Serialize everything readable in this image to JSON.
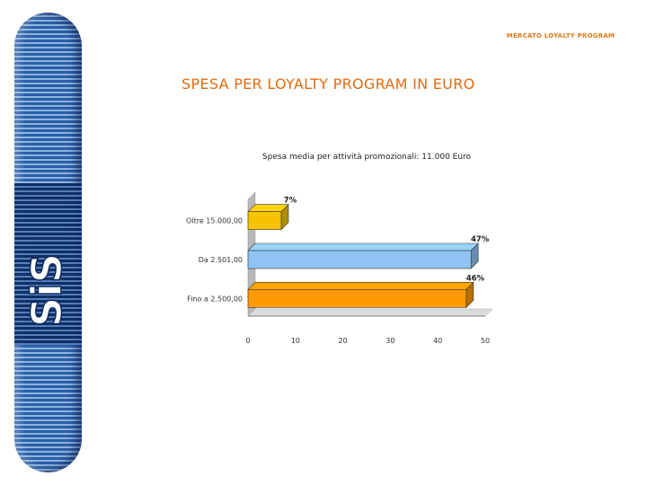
{
  "header": {
    "label": "MERCATO LOYALTY PROGRAM"
  },
  "page": {
    "title": "SPESA PER LOYALTY PROGRAM IN EURO"
  },
  "logo": {
    "text": "SiS",
    "icon": "sis-logo-vertical"
  },
  "colors": {
    "title": "#e06a10",
    "sidebar": "#2a5fa8"
  },
  "chart_data": {
    "type": "bar",
    "orientation": "horizontal",
    "title": "Spesa media per attività promozionali: 11.000 Euro",
    "categories": [
      "Oltre 15.000,00",
      "Da 2.501,00",
      "Fino a 2.500,00"
    ],
    "values": [
      7,
      47,
      46
    ],
    "data_labels": [
      "7%",
      "47%",
      "46%"
    ],
    "bar_colors": [
      "#f5c300",
      "#8fc4f4",
      "#ff9a00"
    ],
    "xlim": [
      0,
      50
    ],
    "xticks": [
      "0",
      "10",
      "20",
      "30",
      "40",
      "50"
    ],
    "grid": false,
    "style": "3d"
  }
}
